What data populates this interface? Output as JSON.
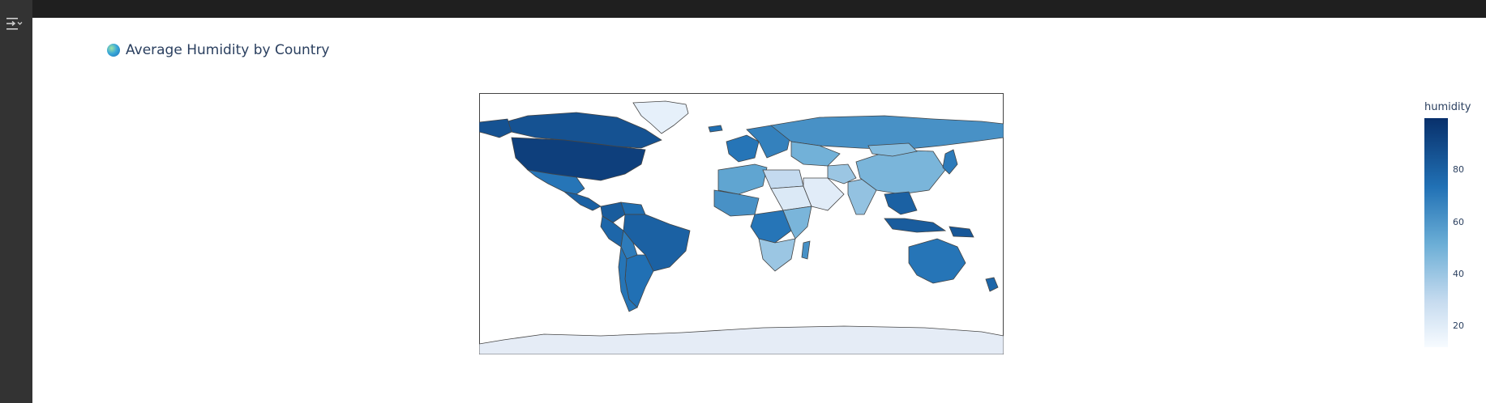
{
  "title": "Average Humidity by Country",
  "icons": {
    "title_icon": "globe-icon",
    "sidebar": "sidebar-toggle-icon"
  },
  "colors": {
    "low": "#f7fbff",
    "mid": "#6baed6",
    "high": "#08306b",
    "ocean": "#ffffff",
    "border": "#444444",
    "antarctica": "#e5ecf6"
  },
  "chart_data": {
    "type": "choropleth",
    "title": "Average Humidity by Country",
    "colorscale": "Blues",
    "colorbar": {
      "title": "humidity",
      "ticks": [
        20,
        40,
        60,
        80
      ],
      "range": [
        12,
        100
      ]
    },
    "regions": [
      {
        "name": "Canada",
        "value": 86
      },
      {
        "name": "United States",
        "value": 94
      },
      {
        "name": "Alaska",
        "value": 86
      },
      {
        "name": "Mexico",
        "value": 72
      },
      {
        "name": "Central America",
        "value": 80
      },
      {
        "name": "Colombia",
        "value": 82
      },
      {
        "name": "Venezuela",
        "value": 75
      },
      {
        "name": "Brazil",
        "value": 80
      },
      {
        "name": "Peru",
        "value": 78
      },
      {
        "name": "Bolivia",
        "value": 70
      },
      {
        "name": "Argentina",
        "value": 74
      },
      {
        "name": "Chile",
        "value": 72
      },
      {
        "name": "Greenland",
        "value": 18
      },
      {
        "name": "Iceland",
        "value": 75
      },
      {
        "name": "Western Europe",
        "value": 72
      },
      {
        "name": "Eastern Europe",
        "value": 68
      },
      {
        "name": "Russia",
        "value": 62
      },
      {
        "name": "Kazakhstan",
        "value": 50
      },
      {
        "name": "North Africa",
        "value": 55
      },
      {
        "name": "Libya & Egypt",
        "value": 30
      },
      {
        "name": "Sudan",
        "value": 22
      },
      {
        "name": "Arabia",
        "value": 20
      },
      {
        "name": "Iran",
        "value": 40
      },
      {
        "name": "West Africa",
        "value": 62
      },
      {
        "name": "Central Africa",
        "value": 72
      },
      {
        "name": "East Africa",
        "value": 48
      },
      {
        "name": "Southern Africa",
        "value": 40
      },
      {
        "name": "Madagascar",
        "value": 62
      },
      {
        "name": "India",
        "value": 42
      },
      {
        "name": "China",
        "value": 48
      },
      {
        "name": "Mongolia",
        "value": 45
      },
      {
        "name": "Japan",
        "value": 70
      },
      {
        "name": "Southeast Asia",
        "value": 80
      },
      {
        "name": "Indonesia",
        "value": 82
      },
      {
        "name": "Papua New Guinea",
        "value": 84
      },
      {
        "name": "Australia",
        "value": 72
      },
      {
        "name": "New Zealand",
        "value": 78
      },
      {
        "name": "Antarctica",
        "value": null
      }
    ]
  }
}
